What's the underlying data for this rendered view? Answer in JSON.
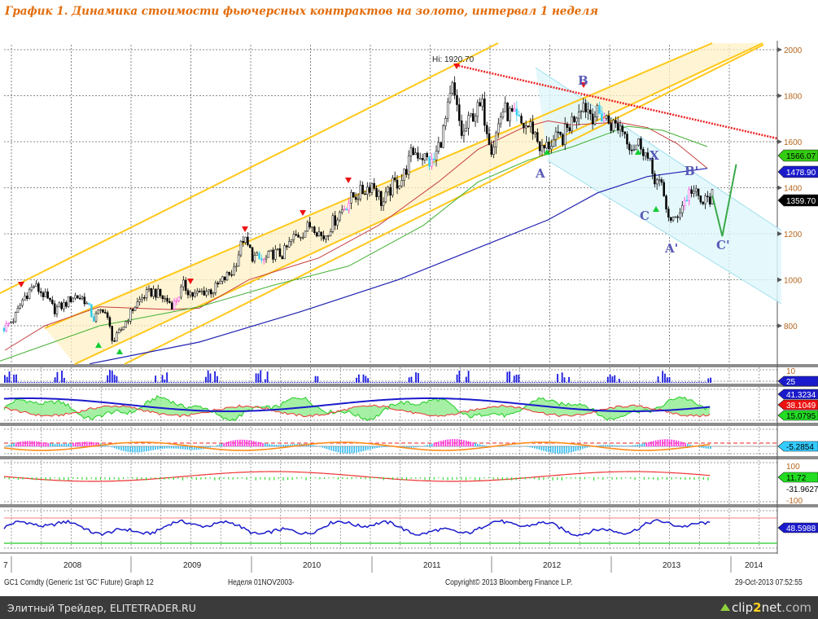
{
  "title": "График 1.   Динамика стоимости фьючерсных контрактов на золото, интервал 1 неделя",
  "chart_data": {
    "type": "candlestick",
    "title": "График 1.   Динамика стоимости фьючерсных контрактов на золото, интервал 1 неделя",
    "series_name": "GC1 Comdty (Generic 1st 'GC' Future)",
    "interval": "weekly",
    "start_month": "2007-11",
    "monthly_close": [
      790,
      830,
      925,
      975,
      935,
      870,
      890,
      930,
      920,
      830,
      880,
      730,
      800,
      880,
      930,
      950,
      920,
      890,
      975,
      930,
      950,
      955,
      1000,
      1040,
      1180,
      1100,
      1080,
      1115,
      1110,
      1180,
      1210,
      1245,
      1180,
      1250,
      1310,
      1360,
      1385,
      1420,
      1330,
      1410,
      1440,
      1560,
      1540,
      1500,
      1630,
      1830,
      1620,
      1720,
      1750,
      1570,
      1740,
      1710,
      1670,
      1665,
      1560,
      1600,
      1615,
      1690,
      1775,
      1720,
      1715,
      1675,
      1665,
      1580,
      1595,
      1470,
      1395,
      1235,
      1320,
      1395,
      1330,
      1360
    ],
    "ylim": [
      640,
      2040
    ],
    "y_ticks": [
      "2000",
      "1800",
      "1600",
      "1400",
      "1200",
      "1000",
      "800"
    ],
    "x_ticks": [
      "7",
      "2008",
      "2009",
      "2010",
      "2011",
      "2012",
      "2013",
      "2014"
    ],
    "high_label": "Hi: 1920.70",
    "wave_labels": [
      "A",
      "B",
      "X",
      "C",
      "A'",
      "B'",
      "C'"
    ],
    "price_tags": [
      {
        "value": "1566.07",
        "color": "#33cc11"
      },
      {
        "value": "1478.90",
        "color": "#1a1acc"
      },
      {
        "value": "1359.70",
        "color": "#000000"
      }
    ],
    "panels": [
      {
        "name": "volume",
        "tags": [
          {
            "value": "10",
            "color": "#ffffff"
          },
          {
            "value": "25",
            "color": "#1a1acc"
          }
        ]
      },
      {
        "name": "dmi",
        "tags": [
          {
            "value": "41.3234",
            "color": "#1a1acc"
          },
          {
            "value": "38.1049",
            "color": "#ee1111"
          },
          {
            "value": "15.0795",
            "color": "#22dd22"
          }
        ]
      },
      {
        "name": "macd",
        "tags": [
          {
            "value": "-5.2854",
            "color": "#33ccff"
          }
        ]
      },
      {
        "name": "cci",
        "tags": [
          {
            "value": "100",
            "color": "#ffffff"
          },
          {
            "value": "11.72",
            "color": "#22dd22"
          },
          {
            "value": "-31.9627",
            "color": "#ffffff"
          },
          {
            "value": "-100",
            "color": "#ffffff"
          }
        ]
      },
      {
        "name": "rsi",
        "tags": [
          {
            "value": "48.5988",
            "color": "#1a1acc"
          }
        ]
      }
    ]
  },
  "footer": {
    "security": "GC1 Comdty (Generic 1st 'GC' Future) Graph 12",
    "period": "Неделя 01NOV2003-",
    "copyright": "Copyright© 2013 Bloomberg Finance L.P.",
    "timestamp": "29-Oct-2013 07:52:55"
  },
  "watermark_bar": {
    "text": "Элитный Трейдер, ELITETRADER.RU",
    "logo_clip": "clip",
    "logo_two": "2",
    "logo_net": "net",
    "logo_com": ".com"
  }
}
